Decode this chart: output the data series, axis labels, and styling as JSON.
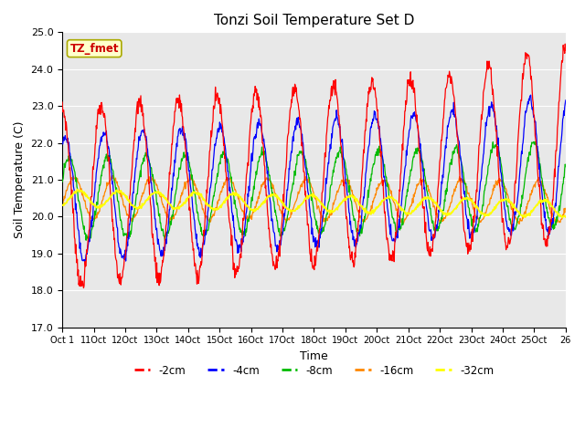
{
  "title": "Tonzi Soil Temperature Set D",
  "xlabel": "Time",
  "ylabel": "Soil Temperature (C)",
  "xlim_days": 26,
  "ylim": [
    17.0,
    25.0
  ],
  "yticks": [
    17.0,
    18.0,
    19.0,
    20.0,
    21.0,
    22.0,
    23.0,
    24.0,
    25.0
  ],
  "series_colors": {
    "-2cm": "#ff0000",
    "-4cm": "#0000ff",
    "-8cm": "#00bb00",
    "-16cm": "#ff8800",
    "-32cm": "#ffff00"
  },
  "legend_entries": [
    "-2cm",
    "-4cm",
    "-8cm",
    "-16cm",
    "-32cm"
  ],
  "annotation_text": "TZ_fmet",
  "annotation_color": "#cc0000",
  "annotation_bg": "#ffffcc",
  "annotation_edge": "#aaaa00",
  "background_color": "#e8e8e8",
  "fig_bg": "#ffffff",
  "n_points": 1040,
  "period_days": 2.0,
  "base_temp": 20.5,
  "base_slope": -0.008,
  "amp_2cm": 2.4,
  "amp_4cm": 1.7,
  "amp_8cm": 1.1,
  "amp_16cm": 0.55,
  "amp_32cm": 0.22,
  "phase_2cm": 1.57,
  "phase_4cm": 1.1,
  "phase_8cm": 0.5,
  "phase_16cm": -0.3,
  "phase_32cm": -1.2,
  "trend_2cm": 0.055,
  "trend_4cm": 0.04,
  "trend_8cm": 0.02,
  "trend_16cm": 0.005,
  "trend_32cm": -0.003
}
